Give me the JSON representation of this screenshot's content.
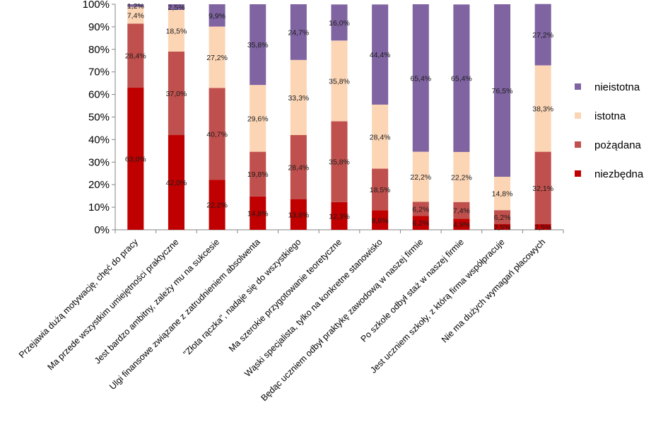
{
  "chart_data": {
    "type": "bar",
    "stacked": true,
    "percent": true,
    "categories": [
      "Przejawia dużą motywację, chęć do pracy",
      "Ma przede wszystkim umiejętności praktyczne",
      "Jest bardzo ambitny, zależy mu na sukcesie",
      "Ulgi finansowe związane z zatrudnieniem absolwenta",
      "\"Złota rączka\", nadaje się do wszystkiego",
      "Ma szerokie przygotowanie teoretyczne",
      "Wąski specjalista, tylko na konkretne stanowisko",
      "Będąc uczniem odbył praktykę zawodową w naszej firmie",
      "Po szkole odbył staż w naszej firmie",
      "Jest uczniem szkoły, z którą firma współpracuje",
      "Nie ma dużych wymagań płacowych"
    ],
    "series": [
      {
        "name": "niezbędna",
        "color": "#c00000",
        "values": [
          63.0,
          42.0,
          22.2,
          14.8,
          13.6,
          12.3,
          8.6,
          6.2,
          4.9,
          2.5,
          2.5
        ],
        "labels": [
          "63,0%",
          "42,0%",
          "22,2%",
          "14,8%",
          "13,6%",
          "12,3%",
          "8,6%",
          "6,2%",
          "4,9%",
          "2,5%",
          "2,5%"
        ]
      },
      {
        "name": "pożądana",
        "color": "#c0504d",
        "values": [
          28.4,
          37.0,
          40.7,
          19.8,
          28.4,
          35.8,
          18.5,
          6.2,
          7.4,
          6.2,
          32.1
        ],
        "labels": [
          "28,4%",
          "37,0%",
          "40,7%",
          "19,8%",
          "28,4%",
          "35,8%",
          "18,5%",
          "6,2%",
          "7,4%",
          "6,2%",
          "32,1%"
        ]
      },
      {
        "name": "istotna",
        "color": "#fcd5b5",
        "values": [
          7.4,
          18.5,
          27.2,
          29.6,
          33.3,
          35.8,
          28.4,
          22.2,
          22.2,
          14.8,
          38.3
        ],
        "labels": [
          "7,4%",
          "18,5%",
          "27,2%",
          "29,6%",
          "33,3%",
          "35,8%",
          "28,4%",
          "22,2%",
          "22,2%",
          "14,8%",
          "38,3%"
        ]
      },
      {
        "name": "nieistotna",
        "color": "#8064a2",
        "values": [
          1.2,
          2.5,
          9.9,
          35.8,
          24.7,
          16.0,
          44.4,
          65.4,
          65.4,
          76.5,
          27.2
        ],
        "labels": [
          "1,2%",
          "2,5%",
          "9,9%",
          "35,8%",
          "24,7%",
          "16,0%",
          "44,4%",
          "65,4%",
          "65,4%",
          "76,5%",
          "27,2%"
        ]
      }
    ],
    "yticks": [
      "0%",
      "10%",
      "20%",
      "30%",
      "40%",
      "50%",
      "60%",
      "70%",
      "80%",
      "90%",
      "100%"
    ],
    "ylim": [
      0,
      100
    ],
    "legend_order": [
      "nieistotna",
      "istotna",
      "pożądana",
      "niezbędna"
    ],
    "legend_position": "right",
    "grid": false,
    "title": "",
    "xlabel": "",
    "ylabel": ""
  }
}
